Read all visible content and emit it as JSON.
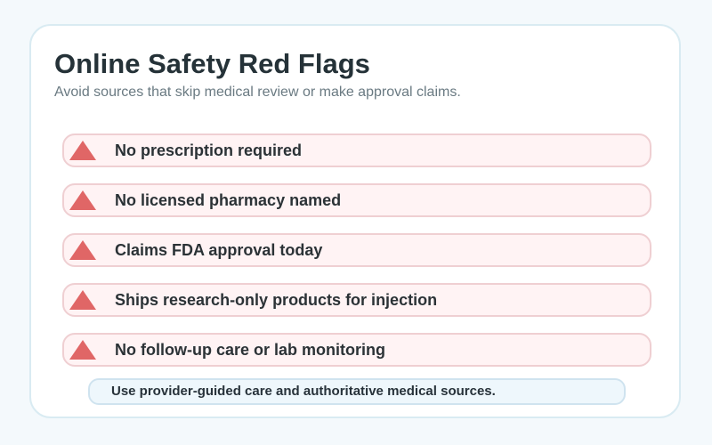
{
  "header": {
    "title": "Online Safety Red Flags",
    "subtitle": "Avoid sources that skip medical review or make approval claims."
  },
  "flags": [
    {
      "label": "No prescription required",
      "icon": "warning-triangle-icon"
    },
    {
      "label": "No licensed pharmacy named",
      "icon": "warning-triangle-icon"
    },
    {
      "label": "Claims FDA approval today",
      "icon": "warning-triangle-icon"
    },
    {
      "label": "Ships research-only products for injection",
      "icon": "warning-triangle-icon"
    },
    {
      "label": "No follow-up care or lab monitoring",
      "icon": "warning-triangle-icon"
    }
  ],
  "footer": {
    "note": "Use provider-guided care and authoritative medical sources."
  },
  "colors": {
    "warning": "#e06666",
    "flag_background": "#fff3f4",
    "flag_border": "#efcfd2",
    "note_background": "#eef7fc",
    "note_border": "#cfe3ef"
  }
}
